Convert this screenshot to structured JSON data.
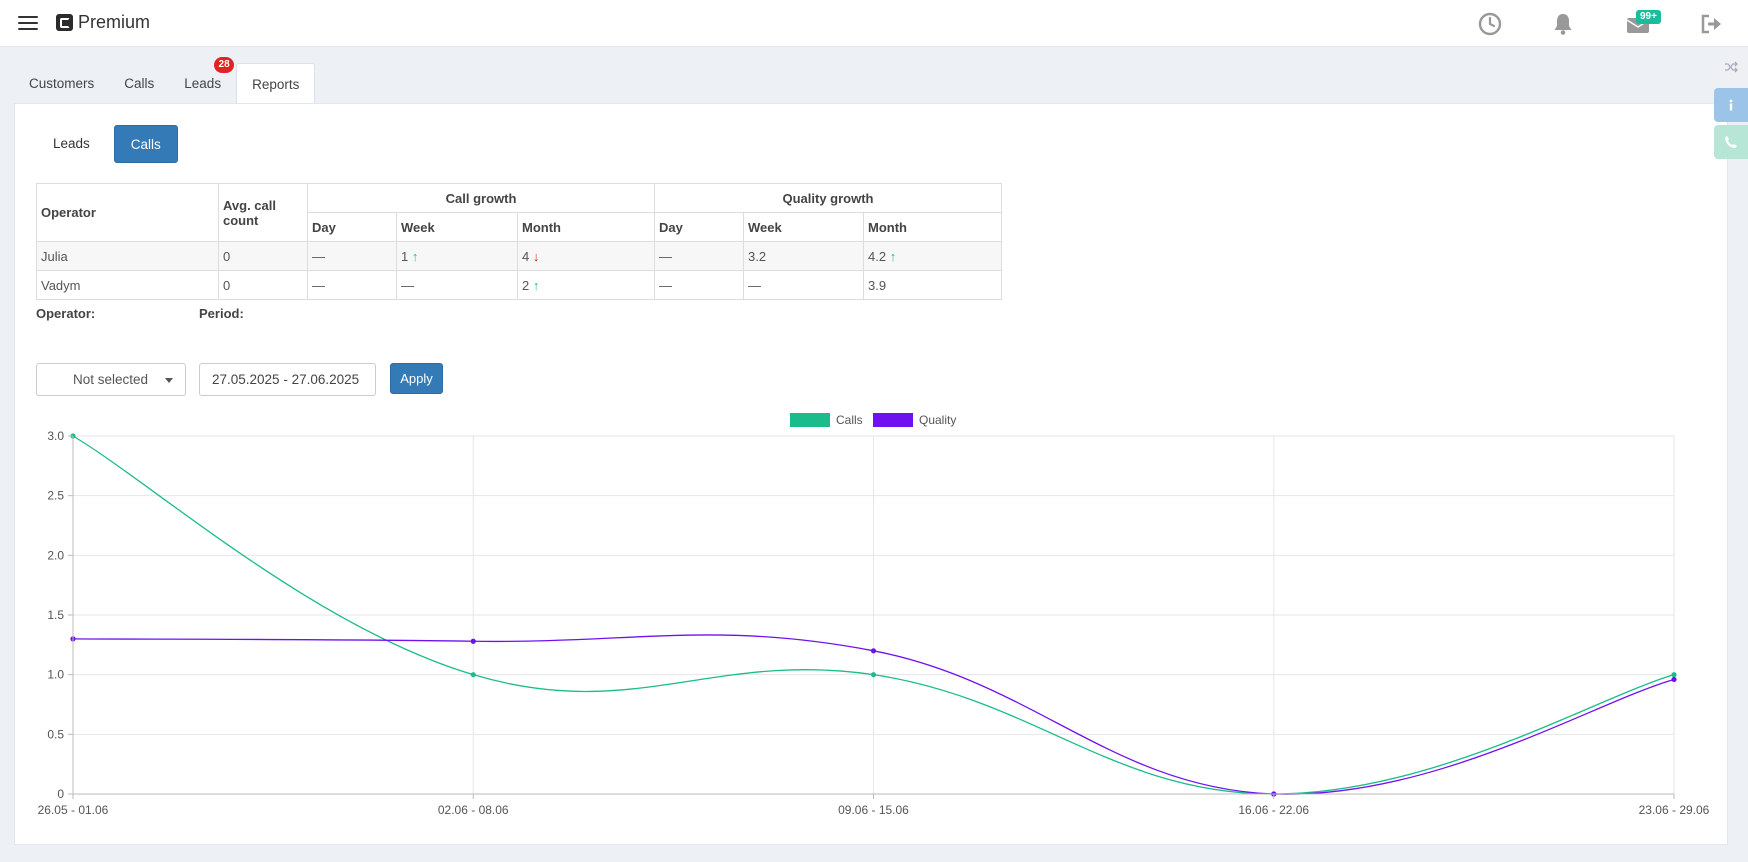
{
  "header": {
    "brand": "Premium",
    "messages_badge": "99+"
  },
  "icons": {
    "menu": "menu-icon",
    "history": "clock-icon",
    "notifications": "bell-icon",
    "messages": "mail-icon",
    "logout": "logout-icon",
    "shuffle": "shuffle-icon",
    "info": "info-icon",
    "phone": "phone-icon"
  },
  "tabs": [
    {
      "label": "Customers"
    },
    {
      "label": "Calls"
    },
    {
      "label": "Leads",
      "badge": "28"
    },
    {
      "label": "Reports",
      "active": true
    }
  ],
  "subtabs": [
    {
      "label": "Leads"
    },
    {
      "label": "Calls",
      "active": true
    }
  ],
  "table": {
    "headers": {
      "operator": "Operator",
      "avg": "Avg. call count",
      "call_growth": "Call growth",
      "quality_growth": "Quality growth",
      "day": "Day",
      "week": "Week",
      "month": "Month"
    },
    "rows": [
      {
        "operator": "Julia",
        "avg": "0",
        "call_day": "—",
        "call_week": "1",
        "call_week_arrow": "↑",
        "call_month": "4",
        "call_month_arrow": "↓",
        "q_day": "—",
        "q_week": "3.2",
        "q_month": "4.2",
        "q_month_arrow": "↑"
      },
      {
        "operator": "Vadym",
        "avg": "0",
        "call_day": "—",
        "call_week": "—",
        "call_week_arrow": "",
        "call_month": "2",
        "call_month_arrow": "↑",
        "q_day": "—",
        "q_week": "—",
        "q_month": "3.9",
        "q_month_arrow": ""
      }
    ]
  },
  "filters": {
    "operator_label": "Operator:",
    "operator_value": "Not selected",
    "period_label": "Period:",
    "period_value": "27.05.2025 - 27.06.2025",
    "apply_label": "Apply"
  },
  "colors": {
    "calls": "#1abc8c",
    "quality": "#7011ef",
    "primary": "#337ab7",
    "badge_red": "#e02424",
    "badge_green": "#1abc9c"
  },
  "chart_data": {
    "type": "line",
    "categories": [
      "26.05 - 01.06",
      "02.06 - 08.06",
      "09.06 - 15.06",
      "16.06 - 22.06",
      "23.06 - 29.06"
    ],
    "series": [
      {
        "name": "Calls",
        "values": [
          3.0,
          1.0,
          1.0,
          0.0,
          1.0
        ]
      },
      {
        "name": "Quality",
        "values": [
          1.3,
          1.28,
          1.2,
          0.0,
          0.96
        ]
      }
    ],
    "ylim": [
      0,
      3
    ],
    "yticks": [
      "0",
      "0.5",
      "1.0",
      "1.5",
      "2.0",
      "2.5",
      "3.0"
    ],
    "grid": true,
    "legend": "top-center",
    "smooth": true
  }
}
